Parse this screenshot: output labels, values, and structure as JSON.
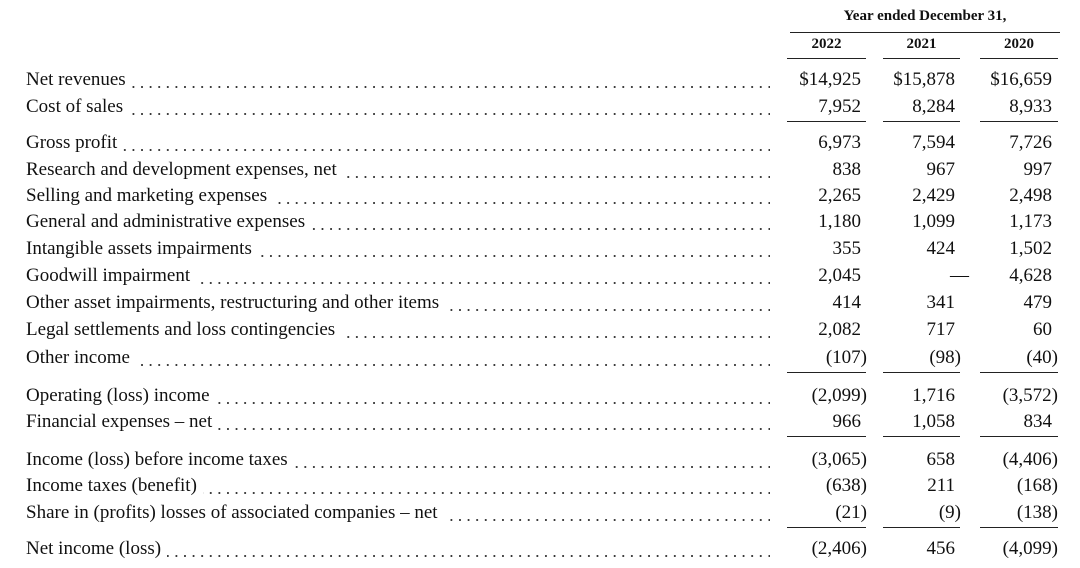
{
  "header": {
    "title": "Year ended December 31,",
    "years": [
      "2022",
      "2021",
      "2020"
    ]
  },
  "rows": [
    {
      "label": "Net revenues",
      "values": [
        "$14,925",
        "$15,878",
        "$16,659"
      ]
    },
    {
      "label": "Cost of sales",
      "values": [
        "7,952",
        "8,284",
        "8,933"
      ]
    },
    {
      "label": "Gross profit",
      "values": [
        "6,973",
        "7,594",
        "7,726"
      ]
    },
    {
      "label": "Research and development expenses, net",
      "values": [
        "838",
        "967",
        "997"
      ]
    },
    {
      "label": "Selling and marketing expenses",
      "values": [
        "2,265",
        "2,429",
        "2,498"
      ]
    },
    {
      "label": "General and administrative expenses",
      "values": [
        "1,180",
        "1,099",
        "1,173"
      ]
    },
    {
      "label": "Intangible assets impairments",
      "values": [
        "355",
        "424",
        "1,502"
      ]
    },
    {
      "label": "Goodwill impairment",
      "values": [
        "2,045",
        "—",
        "4,628"
      ]
    },
    {
      "label": "Other asset impairments, restructuring and other items",
      "values": [
        "414",
        "341",
        "479"
      ]
    },
    {
      "label": "Legal settlements and loss contingencies",
      "values": [
        "2,082",
        "717",
        "60"
      ]
    },
    {
      "label": "Other income",
      "values": [
        "(107)",
        "(98)",
        "(40)"
      ]
    },
    {
      "label": "Operating (loss) income",
      "values": [
        "(2,099)",
        "1,716",
        "(3,572)"
      ]
    },
    {
      "label": "Financial expenses – net",
      "values": [
        "966",
        "1,058",
        "834"
      ]
    },
    {
      "label": "Income (loss) before income taxes",
      "values": [
        "(3,065)",
        "658",
        "(4,406)"
      ]
    },
    {
      "label": "Income taxes (benefit)",
      "values": [
        "(638)",
        "211",
        "(168)"
      ]
    },
    {
      "label": "Share in (profits) losses of associated companies – net",
      "values": [
        "(21)",
        "(9)",
        "(138)"
      ]
    },
    {
      "label": "Net income (loss)",
      "values": [
        "(2,406)",
        "456",
        "(4,099)"
      ]
    }
  ]
}
